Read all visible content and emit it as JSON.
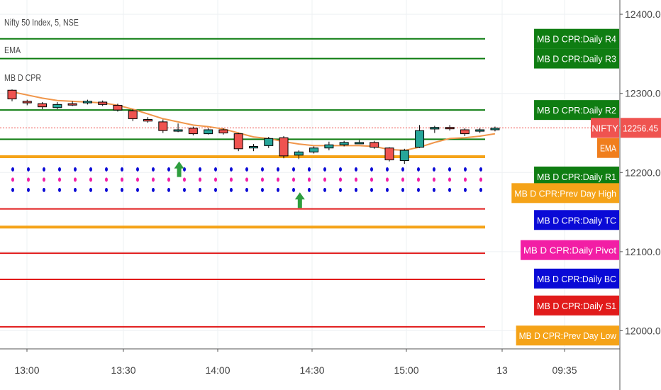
{
  "legend": {
    "symbol": "Nifty 50 Index, 5, NSE",
    "ema": "EMA",
    "indicator": "MB D CPR"
  },
  "chart_data": {
    "type": "candlestick",
    "symbol": "NIFTY",
    "interval": "5",
    "exchange": "NSE",
    "ylim": [
      11990,
      12410
    ],
    "y_ticks": [
      "12000.00",
      "12100.00",
      "12200.00",
      "12300.00",
      "12400.00"
    ],
    "y_tick_values": [
      12000,
      12100,
      12200,
      12300,
      12400
    ],
    "x_ticks": [
      "13:00",
      "13:30",
      "14:00",
      "14:30",
      "15:00",
      "13",
      "09:35"
    ],
    "candles": [
      {
        "o": 12304,
        "h": 12305,
        "l": 12290,
        "c": 12293
      },
      {
        "o": 12290,
        "h": 12292,
        "l": 12285,
        "c": 12288
      },
      {
        "o": 12287,
        "h": 12289,
        "l": 12280,
        "c": 12283
      },
      {
        "o": 12282,
        "h": 12289,
        "l": 12280,
        "c": 12286
      },
      {
        "o": 12287,
        "h": 12290,
        "l": 12284,
        "c": 12286
      },
      {
        "o": 12288,
        "h": 12292,
        "l": 12286,
        "c": 12290
      },
      {
        "o": 12289,
        "h": 12291,
        "l": 12284,
        "c": 12286
      },
      {
        "o": 12285,
        "h": 12287,
        "l": 12277,
        "c": 12279
      },
      {
        "o": 12278,
        "h": 12280,
        "l": 12265,
        "c": 12268
      },
      {
        "o": 12267,
        "h": 12270,
        "l": 12263,
        "c": 12265
      },
      {
        "o": 12264,
        "h": 12267,
        "l": 12250,
        "c": 12253
      },
      {
        "o": 12254,
        "h": 12262,
        "l": 12251,
        "c": 12254
      },
      {
        "o": 12256,
        "h": 12258,
        "l": 12247,
        "c": 12249
      },
      {
        "o": 12249,
        "h": 12256,
        "l": 12248,
        "c": 12254
      },
      {
        "o": 12254,
        "h": 12256,
        "l": 12248,
        "c": 12250
      },
      {
        "o": 12249,
        "h": 12250,
        "l": 12227,
        "c": 12230
      },
      {
        "o": 12231,
        "h": 12236,
        "l": 12227,
        "c": 12233
      },
      {
        "o": 12234,
        "h": 12245,
        "l": 12231,
        "c": 12243
      },
      {
        "o": 12244,
        "h": 12246,
        "l": 12218,
        "c": 12221
      },
      {
        "o": 12222,
        "h": 12228,
        "l": 12217,
        "c": 12226
      },
      {
        "o": 12226,
        "h": 12233,
        "l": 12224,
        "c": 12231
      },
      {
        "o": 12231,
        "h": 12239,
        "l": 12228,
        "c": 12235
      },
      {
        "o": 12235,
        "h": 12240,
        "l": 12233,
        "c": 12238
      },
      {
        "o": 12238,
        "h": 12241,
        "l": 12236,
        "c": 12238
      },
      {
        "o": 12238,
        "h": 12240,
        "l": 12230,
        "c": 12232
      },
      {
        "o": 12231,
        "h": 12232,
        "l": 12214,
        "c": 12216
      },
      {
        "o": 12215,
        "h": 12230,
        "l": 12211,
        "c": 12228
      },
      {
        "o": 12232,
        "h": 12260,
        "l": 12231,
        "c": 12253
      },
      {
        "o": 12255,
        "h": 12259,
        "l": 12250,
        "c": 12257
      },
      {
        "o": 12257,
        "h": 12260,
        "l": 12253,
        "c": 12256
      },
      {
        "o": 12254,
        "h": 12256,
        "l": 12246,
        "c": 12249
      },
      {
        "o": 12253,
        "h": 12256,
        "l": 12250,
        "c": 12254
      },
      {
        "o": 12254,
        "h": 12258,
        "l": 12252,
        "c": 12256
      }
    ],
    "ema": [
      12302,
      12298,
      12294,
      12291,
      12290,
      12289,
      12288,
      12285,
      12280,
      12274,
      12268,
      12264,
      12260,
      12258,
      12255,
      12250,
      12245,
      12243,
      12239,
      12236,
      12234,
      12234,
      12234,
      12234,
      12233,
      12229,
      12228,
      12232,
      12238,
      12243,
      12244,
      12246,
      12249
    ],
    "cpr_dots": {
      "tc": 12204,
      "pivot": 12191,
      "bc": 12178
    },
    "signal_arrows": [
      {
        "candle": 11,
        "value": 12214
      },
      {
        "candle": 19,
        "value": 12175
      }
    ],
    "levels": [
      {
        "label": "MB D CPR:Daily R4",
        "value": 12369,
        "color": "#0f7d12",
        "thick": false
      },
      {
        "label": "MB D CPR:Daily R3",
        "value": 12344,
        "color": "#0f7d12",
        "thick": false
      },
      {
        "label": "MB D CPR:Daily R2",
        "value": 12279,
        "color": "#0f7d12",
        "thick": false
      },
      {
        "label": "MB D CPR:Daily R1",
        "value": 12242,
        "color": "#0f7d12",
        "thick": false
      },
      {
        "label": "MB D CPR:Prev Day High",
        "value": 12220,
        "color": "#f5a318",
        "thick": true
      },
      {
        "label": "MB D CPR:Daily S1",
        "value": 12154,
        "color": "#e11b1b",
        "thick": false
      },
      {
        "label": "MB D CPR:Prev Day Low",
        "value": 12131,
        "color": "#f5a318",
        "thick": true
      },
      {
        "label": "",
        "value": 12098,
        "color": "#e11b1b",
        "thick": false
      },
      {
        "label": "",
        "value": 12065,
        "color": "#e11b1b",
        "thick": false
      },
      {
        "label": "",
        "value": 12005,
        "color": "#e11b1b",
        "thick": false
      }
    ],
    "price_labels": [
      {
        "text": "MB D CPR:Daily R4",
        "value": 12369,
        "color": "#0f7d12"
      },
      {
        "text": "MB D CPR:Daily R3",
        "value": 12344,
        "color": "#0f7d12"
      },
      {
        "text": "MB D CPR:Daily R2",
        "value": 12279,
        "color": "#0f7d12"
      },
      {
        "text": "EMA",
        "value": 12231,
        "color": "#f07e1d"
      },
      {
        "text": "MB D CPR:Daily R1",
        "value": 12195,
        "color": "#0f7d12"
      },
      {
        "text": "MB D CPR:Prev Day High",
        "value": 12174,
        "color": "#f5a318"
      },
      {
        "text": "MB D CPR:Daily TC",
        "value": 12140,
        "color": "#0a0ad6"
      },
      {
        "text": "MB D CPR:Daily Pivot",
        "value": 12102,
        "color": "#f21ea5"
      },
      {
        "text": "MB D CPR:Daily BC",
        "value": 12066,
        "color": "#0a0ad6"
      },
      {
        "text": "MB D CPR:Daily S1",
        "value": 12032,
        "color": "#e11b1b"
      },
      {
        "text": "MB D CPR:Prev Day Low",
        "value": 11994,
        "color": "#f5a318"
      }
    ],
    "last_price": {
      "symbol": "NIFTY",
      "text": "12256.45",
      "value": 12256.45,
      "color": "#ef5350"
    },
    "colors": {
      "up": "#26a69a",
      "down": "#ef5350",
      "ema": "#f0964a",
      "tc": "#0a0ad6",
      "pivot": "#f21ea5",
      "bc": "#0a0ad6",
      "arrow": "#2e9e3e"
    }
  }
}
